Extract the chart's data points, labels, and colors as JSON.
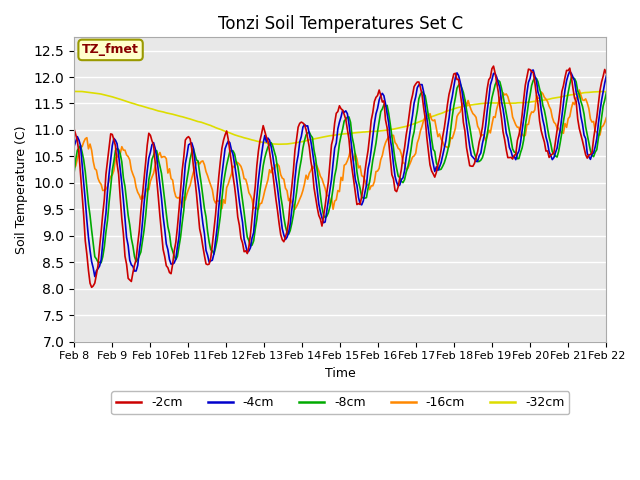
{
  "title": "Tonzi Soil Temperatures Set C",
  "xlabel": "Time",
  "ylabel": "Soil Temperature (C)",
  "ylim": [
    7.0,
    12.75
  ],
  "yticks": [
    7.0,
    7.5,
    8.0,
    8.5,
    9.0,
    9.5,
    10.0,
    10.5,
    11.0,
    11.5,
    12.0,
    12.5
  ],
  "xtick_labels": [
    "Feb 8",
    "Feb 9",
    "Feb 10",
    "Feb 11",
    "Feb 12",
    "Feb 13",
    "Feb 14",
    "Feb 15",
    "Feb 16",
    "Feb 17",
    "Feb 18",
    "Feb 19",
    "Feb 20",
    "Feb 21",
    "Feb 22"
  ],
  "series_colors": [
    "#cc0000",
    "#0000cc",
    "#00aa00",
    "#ff8800",
    "#dddd00"
  ],
  "series_labels": [
    "-2cm",
    "-4cm",
    "-8cm",
    "-16cm",
    "-32cm"
  ],
  "legend_label": "TZ_fmet",
  "legend_bg": "#ffffcc",
  "legend_edge": "#999900",
  "legend_text_color": "#880000",
  "plot_bg": "#e8e8e8",
  "fig_bg": "#ffffff",
  "grid_color": "#ffffff",
  "n_points": 336,
  "days": 14
}
